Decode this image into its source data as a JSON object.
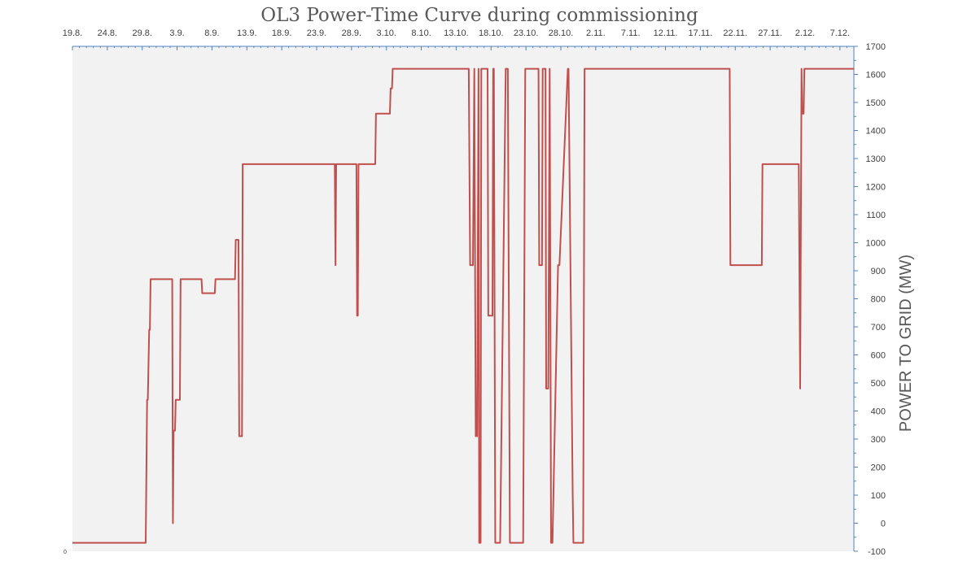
{
  "chart_data": {
    "type": "line",
    "title": "OL3 Power-Time Curve during commissioning",
    "xlabel": "",
    "ylabel": "POWER TO GRID (MW)",
    "origin_label": "0",
    "x_tick_labels": [
      "19.8.",
      "24.8.",
      "29.8.",
      "3.9.",
      "8.9.",
      "13.9.",
      "18.9.",
      "23.9.",
      "28.9.",
      "3.10.",
      "8.10.",
      "13.10.",
      "18.10.",
      "23.10.",
      "28.10.",
      "2.11.",
      "7.11.",
      "12.11.",
      "17.11.",
      "22.11.",
      "27.11.",
      "2.12.",
      "7.12."
    ],
    "x_tick_unit": "days since 19.8.",
    "xlim": [
      0,
      112
    ],
    "y_ticks": [
      -100,
      0,
      100,
      200,
      300,
      400,
      500,
      600,
      700,
      800,
      900,
      1000,
      1100,
      1200,
      1300,
      1400,
      1500,
      1600,
      1700
    ],
    "ylim": [
      -100,
      1700
    ],
    "y_axis_position": "right",
    "grid": false,
    "line_color": "#c0504d",
    "plot_background": "#f2f2f2",
    "axis_color": "#4f81bd",
    "series": [
      {
        "x": [
          0,
          10.5,
          10.7,
          10.8,
          11.0,
          11.1,
          11.2,
          14.3,
          14.4,
          14.5,
          14.7,
          14.8,
          15.4,
          15.5,
          18.5,
          18.6,
          20.4,
          20.5,
          23.3,
          23.4,
          23.8,
          23.9,
          24.3,
          24.4,
          24.6,
          24.7,
          37.6,
          37.7,
          37.8,
          37.9,
          40.7,
          40.8,
          40.9,
          41.0,
          43.4,
          43.5,
          45.5,
          45.6,
          45.8,
          45.9,
          56.8,
          57.0,
          57.4,
          57.6,
          57.8,
          58.0,
          58.2,
          58.3,
          58.5,
          58.6,
          59.5,
          59.6,
          60.2,
          60.3,
          60.4,
          60.6,
          61.3,
          62.1,
          62.4,
          62.7,
          64.6,
          64.9,
          66.8,
          66.9,
          67.3,
          67.4,
          67.8,
          67.9,
          68.2,
          68.4,
          68.6,
          68.8,
          69.6,
          69.8,
          71.0,
          71.1,
          71.7,
          71.8,
          72.5,
          72.6,
          73.2,
          73.4,
          79.0,
          79.2,
          94.2,
          94.3,
          98.8,
          98.9,
          104.1,
          104.3,
          104.5,
          104.6,
          104.8,
          104.9,
          112
        ],
        "y": [
          -70,
          -70,
          440,
          440,
          690,
          690,
          870,
          870,
          0,
          330,
          330,
          440,
          440,
          870,
          870,
          820,
          820,
          870,
          870,
          1010,
          1010,
          310,
          310,
          1280,
          1280,
          1280,
          1280,
          920,
          1280,
          1280,
          1280,
          740,
          740,
          1280,
          1280,
          1460,
          1460,
          1550,
          1550,
          1620,
          1620,
          920,
          920,
          1620,
          310,
          310,
          1620,
          -70,
          -70,
          1620,
          1620,
          740,
          740,
          1620,
          1620,
          -70,
          -70,
          1620,
          1620,
          -70,
          -70,
          1620,
          1620,
          920,
          920,
          1620,
          1620,
          480,
          480,
          1620,
          -70,
          -70,
          920,
          920,
          1620,
          1620,
          100,
          -70,
          -70,
          -70,
          -70,
          1620,
          1620,
          1620,
          1620,
          920,
          920,
          1280,
          1280,
          480,
          1620,
          1460,
          1460,
          1620,
          1620
        ]
      }
    ]
  }
}
